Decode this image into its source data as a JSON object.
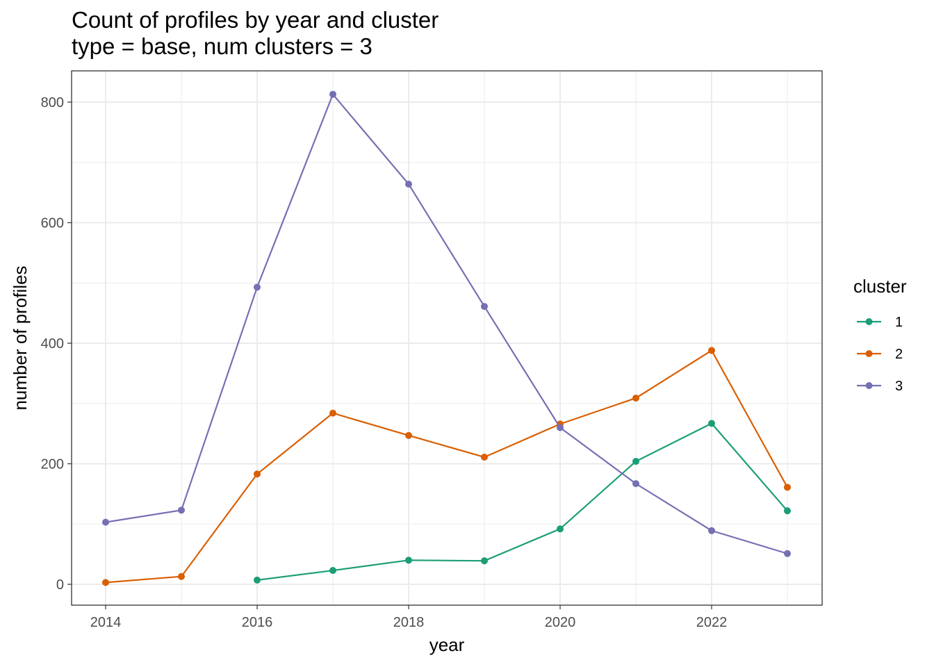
{
  "chart_data": {
    "type": "line",
    "title": "Count of profiles by year and cluster",
    "subtitle": "type = base, num clusters = 3",
    "xlabel": "year",
    "ylabel": "number of profiles",
    "xlim": [
      2013.55,
      2023.45
    ],
    "ylim": [
      -35,
      845
    ],
    "xticks": [
      2014,
      2016,
      2018,
      2020,
      2022
    ],
    "yticks": [
      0,
      200,
      400,
      600,
      800
    ],
    "grid": true,
    "legend": {
      "title": "cluster",
      "position": "right"
    },
    "series": [
      {
        "name": "1",
        "color": "#1b9e77",
        "x": [
          2016,
          2017,
          2018,
          2019,
          2020,
          2021,
          2022,
          2023
        ],
        "values": [
          7,
          23,
          40,
          39,
          92,
          204,
          267,
          122
        ]
      },
      {
        "name": "2",
        "color": "#d95f02",
        "x": [
          2014,
          2015,
          2016,
          2017,
          2018,
          2019,
          2020,
          2021,
          2022,
          2023
        ],
        "values": [
          3,
          13,
          183,
          284,
          247,
          211,
          266,
          309,
          388,
          161
        ]
      },
      {
        "name": "3",
        "color": "#7570b3",
        "x": [
          2014,
          2015,
          2016,
          2017,
          2018,
          2019,
          2020,
          2021,
          2022,
          2023
        ],
        "values": [
          103,
          123,
          493,
          813,
          664,
          461,
          260,
          167,
          89,
          51
        ]
      }
    ]
  }
}
